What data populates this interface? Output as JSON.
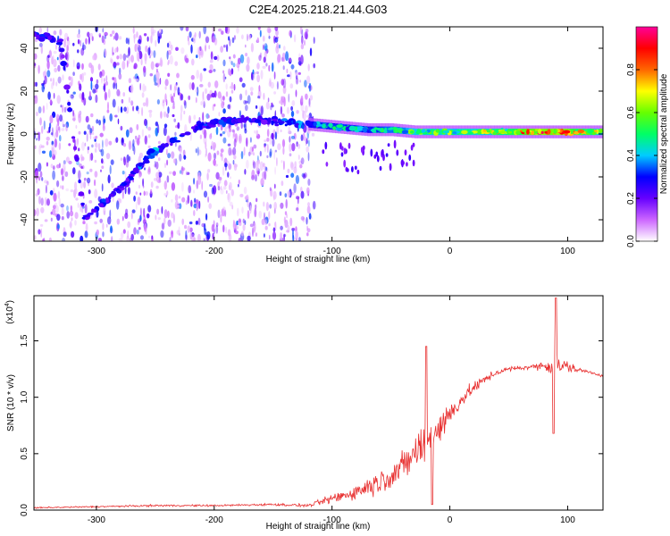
{
  "title": "C2E4.2025.218.21.44.G03",
  "chart_data": [
    {
      "type": "heatmap",
      "title": "C2E4.2025.218.21.44.G03",
      "xlabel": "Height of straight line (km)",
      "ylabel": "Frequency (Hz)",
      "xlim": [
        -353,
        130
      ],
      "ylim": [
        -50,
        50
      ],
      "xticks": [
        -300,
        -200,
        -100,
        0,
        100
      ],
      "yticks": [
        -40,
        -20,
        0,
        20,
        40
      ],
      "xtick_labels": [
        "-300",
        "-200",
        "-100",
        "0",
        "100"
      ],
      "ytick_labels": [
        "-40",
        "-20",
        "0",
        "20",
        "40"
      ],
      "colorbar": {
        "label": "Normalized spectral amplitude",
        "range": [
          0,
          1
        ],
        "ticks": [
          0.0,
          0.2,
          0.4,
          0.6,
          0.8
        ],
        "tick_labels": [
          "0.0",
          "0.2",
          "0.4",
          "0.6",
          "0.8"
        ],
        "colors": [
          "#ffffff",
          "#cc66ff",
          "#6600ff",
          "#0000ff",
          "#00ccff",
          "#00ff66",
          "#66ff00",
          "#ffff00",
          "#ff6600",
          "#ff0000",
          "#ff0099"
        ]
      },
      "ridge": {
        "x": [
          -345,
          -330,
          -310,
          -290,
          -270,
          -255,
          -240,
          -225,
          -210,
          -190,
          -170,
          -150,
          -130,
          -110,
          -90,
          -70,
          -50,
          -30,
          -10,
          10,
          30,
          50,
          70,
          90,
          110,
          130
        ],
        "y": [
          46,
          42,
          -40,
          -30,
          -20,
          -10,
          -5,
          0,
          4,
          6,
          7,
          6,
          5,
          4,
          3,
          2,
          2,
          1,
          1,
          1,
          1,
          1,
          1,
          1,
          1,
          1
        ],
        "amplitude": [
          0.3,
          0.25,
          0.25,
          0.3,
          0.3,
          0.4,
          0.35,
          0.3,
          0.3,
          0.3,
          0.3,
          0.3,
          0.35,
          0.45,
          0.45,
          0.45,
          0.5,
          0.6,
          0.6,
          0.6,
          0.65,
          0.7,
          0.85,
          0.9,
          0.75,
          0.6
        ]
      },
      "scatter_region_x": [
        -353,
        -115
      ]
    },
    {
      "type": "line",
      "xlabel": "Height of straight line (km)",
      "ylabel": "SNR (10 * v/v)",
      "y_multiplier_label": "(x10",
      "y_multiplier_exp": "4",
      "xlim": [
        -353,
        130
      ],
      "ylim": [
        0,
        1.9
      ],
      "xticks": [
        -300,
        -200,
        -100,
        0,
        100
      ],
      "yticks": [
        0.0,
        0.5,
        1.0,
        1.5
      ],
      "xtick_labels": [
        "-300",
        "-200",
        "-100",
        "0",
        "100"
      ],
      "ytick_labels": [
        "0.0",
        "0.5",
        "1.0",
        "1.5"
      ],
      "series": [
        {
          "color": "#e83030",
          "x": [
            -353,
            -300,
            -250,
            -200,
            -150,
            -120,
            -100,
            -80,
            -60,
            -40,
            -30,
            -20,
            -10,
            0,
            10,
            20,
            30,
            40,
            50,
            60,
            70,
            80,
            90,
            100,
            110,
            120,
            130
          ],
          "y": [
            0.02,
            0.03,
            0.04,
            0.04,
            0.05,
            0.04,
            0.1,
            0.16,
            0.25,
            0.38,
            0.5,
            0.6,
            0.72,
            0.85,
            0.98,
            1.08,
            1.16,
            1.22,
            1.25,
            1.26,
            1.27,
            1.28,
            1.28,
            1.27,
            1.24,
            1.22,
            1.19
          ],
          "noise": [
            0.01,
            0.01,
            0.012,
            0.012,
            0.015,
            0.02,
            0.06,
            0.1,
            0.15,
            0.2,
            0.25,
            0.28,
            0.25,
            0.15,
            0.1,
            0.08,
            0.05,
            0.04,
            0.03,
            0.03,
            0.03,
            0.06,
            0.16,
            0.08,
            0.03,
            0.02,
            0.02
          ]
        }
      ]
    }
  ]
}
